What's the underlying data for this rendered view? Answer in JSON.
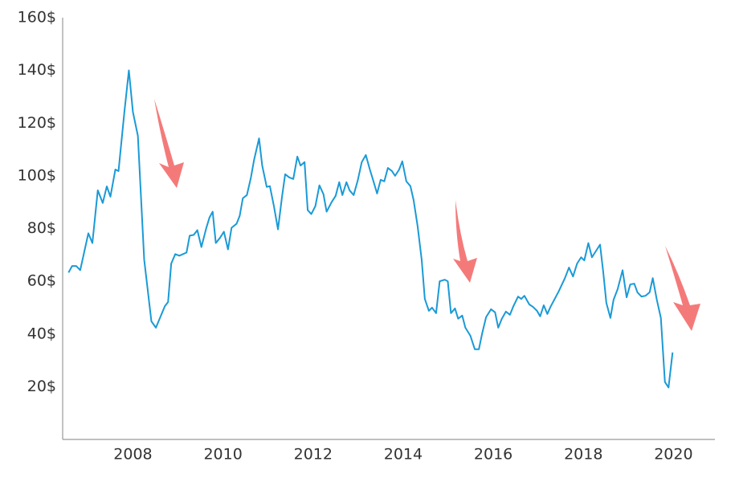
{
  "chart_data": {
    "type": "line",
    "x": [
      2006.57,
      2006.65,
      2006.74,
      2006.83,
      2006.92,
      2007.01,
      2007.1,
      2007.22,
      2007.33,
      2007.42,
      2007.5,
      2007.61,
      2007.68,
      2007.81,
      2007.91,
      2008.0,
      2008.11,
      2008.25,
      2008.41,
      2008.51,
      2008.71,
      2008.78,
      2008.85,
      2008.94,
      2009.03,
      2009.19,
      2009.26,
      2009.35,
      2009.43,
      2009.52,
      2009.63,
      2009.7,
      2009.77,
      2009.84,
      2009.93,
      2010.02,
      2010.11,
      2010.19,
      2010.3,
      2010.37,
      2010.44,
      2010.53,
      2010.62,
      2010.69,
      2010.8,
      2010.87,
      2010.97,
      2011.04,
      2011.13,
      2011.22,
      2011.31,
      2011.38,
      2011.47,
      2011.56,
      2011.65,
      2011.72,
      2011.81,
      2011.88,
      2011.96,
      2012.05,
      2012.14,
      2012.23,
      2012.3,
      2012.41,
      2012.5,
      2012.58,
      2012.65,
      2012.74,
      2012.81,
      2012.9,
      2012.99,
      2013.08,
      2013.17,
      2013.26,
      2013.33,
      2013.42,
      2013.5,
      2013.58,
      2013.66,
      2013.75,
      2013.82,
      2013.91,
      2013.98,
      2014.07,
      2014.16,
      2014.23,
      2014.32,
      2014.41,
      2014.48,
      2014.57,
      2014.64,
      2014.73,
      2014.81,
      2014.92,
      2014.99,
      2015.06,
      2015.15,
      2015.22,
      2015.31,
      2015.38,
      2015.49,
      2015.59,
      2015.68,
      2015.75,
      2015.84,
      2015.95,
      2016.04,
      2016.11,
      2016.19,
      2016.28,
      2016.37,
      2016.44,
      2016.55,
      2016.62,
      2016.69,
      2016.8,
      2016.88,
      2016.97,
      2017.04,
      2017.12,
      2017.2,
      2017.27,
      2017.45,
      2017.59,
      2017.68,
      2017.77,
      2017.86,
      2017.95,
      2018.02,
      2018.11,
      2018.19,
      2018.28,
      2018.37,
      2018.44,
      2018.51,
      2018.6,
      2018.67,
      2018.76,
      2018.87,
      2018.96,
      2019.04,
      2019.13,
      2019.2,
      2019.29,
      2019.38,
      2019.47,
      2019.54,
      2019.63,
      2019.72,
      2019.81,
      2019.89,
      2019.98
    ],
    "values": [
      63.3,
      65.8,
      65.8,
      64.2,
      71.2,
      78.2,
      74.5,
      94.5,
      89.7,
      96,
      92.1,
      102.4,
      101.8,
      124.2,
      140,
      124.2,
      115.2,
      68.2,
      44.8,
      42.4,
      50.6,
      52.1,
      66.7,
      70.3,
      69.7,
      70.9,
      77.3,
      77.6,
      79.4,
      73,
      80.3,
      84.2,
      86.4,
      74.5,
      76.4,
      78.8,
      72.1,
      80.3,
      81.8,
      84.8,
      91.5,
      92.7,
      99.4,
      106.1,
      114.2,
      103.9,
      95.8,
      96.1,
      88.5,
      79.7,
      92.1,
      100.6,
      99.4,
      98.8,
      107.3,
      103.9,
      105.2,
      87,
      85.5,
      88.5,
      96.4,
      93,
      86.4,
      90,
      92.4,
      97.6,
      92.7,
      97.6,
      94.5,
      92.7,
      98.2,
      105.2,
      107.9,
      102.4,
      98.5,
      93.3,
      98.5,
      97.9,
      103,
      101.8,
      100,
      102.4,
      105.5,
      97.9,
      96.1,
      90.9,
      80.9,
      68.2,
      53.3,
      48.8,
      50,
      47.9,
      60,
      60.6,
      60,
      47.9,
      49.7,
      45.8,
      47,
      42.4,
      39.4,
      34.2,
      34.2,
      40,
      46.4,
      49.4,
      48.2,
      42.4,
      45.8,
      48.5,
      47.3,
      50.3,
      54.2,
      53.3,
      54.5,
      51.2,
      50.3,
      48.8,
      46.7,
      50.9,
      47.6,
      50.3,
      56.1,
      61.2,
      65.2,
      61.8,
      66.7,
      69.1,
      67.9,
      74.5,
      69.1,
      71.5,
      73.9,
      63.6,
      51.8,
      46.1,
      53,
      57,
      64.2,
      53.9,
      58.8,
      59.1,
      55.8,
      54.2,
      54.5,
      55.8,
      61.2,
      53,
      46.1,
      21.8,
      19.7,
      33
    ],
    "color": "#1a9ad6",
    "xlim": [
      2006.44,
      2020.92
    ],
    "xticks": [
      2008,
      2010,
      2012,
      2014,
      2016,
      2018,
      2020
    ],
    "ylim": [
      0,
      160
    ],
    "yticks": [
      {
        "value": 20,
        "label": "20$"
      },
      {
        "value": 40,
        "label": "40$"
      },
      {
        "value": 60,
        "label": "60$"
      },
      {
        "value": 80,
        "label": "80$"
      },
      {
        "value": 100,
        "label": "100$"
      },
      {
        "value": 120,
        "label": "120$"
      },
      {
        "value": 140,
        "label": "140$"
      },
      {
        "value": 160,
        "label": "160$"
      }
    ],
    "grid": false
  }
}
